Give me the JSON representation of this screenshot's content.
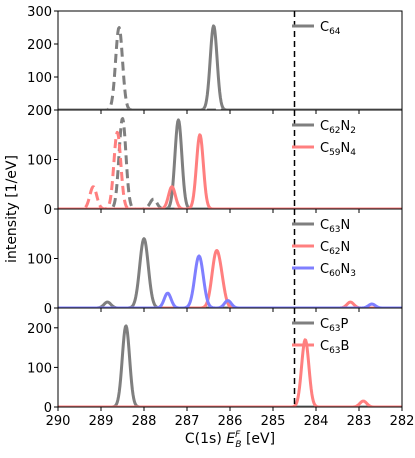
{
  "chart_data": {
    "type": "line",
    "xlabel": "C(1s) E_B^F [eV]",
    "xlabel_parts": {
      "prefix": "C(1s) ",
      "symbol": "E",
      "sub": "B",
      "sup": "F",
      "suffix": " [eV]"
    },
    "ylabel": "intensity [1/eV]",
    "x_range": [
      290,
      282
    ],
    "x_ticks": [
      290,
      289,
      288,
      287,
      286,
      285,
      284,
      283,
      282
    ],
    "vline_x": 284.5,
    "panels": [
      {
        "ylim": [
          0,
          300
        ],
        "y_ticks": [
          0,
          100,
          200,
          300
        ],
        "legend_position": "top-right",
        "series": [
          {
            "name": "C64",
            "name_parts": [
              "C",
              "64",
              ""
            ],
            "color": "#7f7f7f",
            "style": "dashed",
            "in_legend": false,
            "peaks": [
              {
                "center": 288.58,
                "height": 250,
                "width": 0.08
              }
            ]
          },
          {
            "name": "C64",
            "name_parts": [
              "C",
              "64",
              ""
            ],
            "color": "#7f7f7f",
            "style": "solid",
            "in_legend": true,
            "peaks": [
              {
                "center": 286.38,
                "height": 255,
                "width": 0.08
              }
            ]
          }
        ]
      },
      {
        "ylim": [
          0,
          200
        ],
        "y_ticks": [
          0,
          100,
          200
        ],
        "legend_position": "top-right",
        "series": [
          {
            "name": "C62N2",
            "name_parts": [
              "C",
              "62",
              "N",
              "2",
              ""
            ],
            "color": "#7f7f7f",
            "style": "dashed",
            "in_legend": false,
            "peaks": [
              {
                "center": 288.5,
                "height": 183,
                "width": 0.08
              },
              {
                "center": 287.78,
                "height": 20,
                "width": 0.08
              }
            ]
          },
          {
            "name": "C59N4",
            "name_parts": [
              "C",
              "59",
              "N",
              "4",
              ""
            ],
            "color": "#ff7f7f",
            "style": "dashed",
            "in_legend": false,
            "peaks": [
              {
                "center": 289.18,
                "height": 45,
                "width": 0.08
              },
              {
                "center": 288.62,
                "height": 155,
                "width": 0.08
              }
            ]
          },
          {
            "name": "C62N2",
            "name_parts": [
              "C",
              "62",
              "N",
              "2",
              ""
            ],
            "color": "#7f7f7f",
            "style": "solid",
            "in_legend": true,
            "peaks": [
              {
                "center": 287.2,
                "height": 180,
                "width": 0.08
              }
            ]
          },
          {
            "name": "C59N4",
            "name_parts": [
              "C",
              "59",
              "N",
              "4",
              ""
            ],
            "color": "#ff7f7f",
            "style": "solid",
            "in_legend": true,
            "peaks": [
              {
                "center": 287.35,
                "height": 45,
                "width": 0.08
              },
              {
                "center": 286.7,
                "height": 150,
                "width": 0.08
              }
            ]
          }
        ]
      },
      {
        "ylim": [
          0,
          200
        ],
        "y_ticks": [
          0,
          100
        ],
        "legend_position": "top-right",
        "series": [
          {
            "name": "C63N",
            "name_parts": [
              "C",
              "63",
              "N",
              "",
              ""
            ],
            "color": "#7f7f7f",
            "style": "solid",
            "in_legend": true,
            "peaks": [
              {
                "center": 288.0,
                "height": 140,
                "width": 0.1
              },
              {
                "center": 288.85,
                "height": 12,
                "width": 0.08
              }
            ]
          },
          {
            "name": "C62N",
            "name_parts": [
              "C",
              "62",
              "N",
              "",
              ""
            ],
            "color": "#ff7f7f",
            "style": "solid",
            "in_legend": true,
            "peaks": [
              {
                "center": 286.32,
                "height": 110,
                "width": 0.1
              },
              {
                "center": 286.18,
                "height": 25,
                "width": 0.08
              },
              {
                "center": 283.2,
                "height": 12,
                "width": 0.08
              }
            ]
          },
          {
            "name": "C60N3",
            "name_parts": [
              "C",
              "60",
              "N",
              "3",
              ""
            ],
            "color": "#7f7fff",
            "style": "solid",
            "in_legend": true,
            "peaks": [
              {
                "center": 286.72,
                "height": 105,
                "width": 0.1
              },
              {
                "center": 287.45,
                "height": 30,
                "width": 0.08
              },
              {
                "center": 286.05,
                "height": 15,
                "width": 0.08
              },
              {
                "center": 282.7,
                "height": 8,
                "width": 0.08
              }
            ]
          }
        ]
      },
      {
        "ylim": [
          0,
          250
        ],
        "y_ticks": [
          0,
          100,
          200
        ],
        "legend_position": "top-right",
        "series": [
          {
            "name": "C63P",
            "name_parts": [
              "C",
              "63",
              "P",
              "",
              ""
            ],
            "color": "#7f7f7f",
            "style": "solid",
            "in_legend": true,
            "peaks": [
              {
                "center": 288.42,
                "height": 205,
                "width": 0.085
              }
            ]
          },
          {
            "name": "C63B",
            "name_parts": [
              "C",
              "63",
              "B",
              "",
              ""
            ],
            "color": "#ff7f7f",
            "style": "solid",
            "in_legend": true,
            "peaks": [
              {
                "center": 284.25,
                "height": 170,
                "width": 0.085
              },
              {
                "center": 282.9,
                "height": 15,
                "width": 0.08
              }
            ]
          }
        ]
      }
    ]
  }
}
